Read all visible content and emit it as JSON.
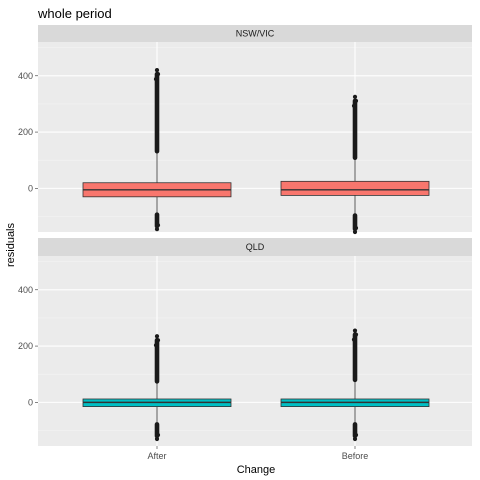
{
  "chart_data": {
    "type": "box",
    "title": "whole period",
    "xlabel": "Change",
    "ylabel": "residuals",
    "categories": [
      "After",
      "Before"
    ],
    "y_ticks": [
      0,
      200,
      400
    ],
    "ylim": [
      -155,
      520
    ],
    "grid": true,
    "legend": "none",
    "facets": [
      {
        "label": "NSW/VIC",
        "color": "#F8766D",
        "boxes": [
          {
            "category": "After",
            "lower_whisker": -145,
            "q1": -30,
            "median": -5,
            "q3": 20,
            "upper_whisker": 420
          },
          {
            "category": "Before",
            "lower_whisker": -155,
            "q1": -25,
            "median": -5,
            "q3": 25,
            "upper_whisker": 325
          }
        ]
      },
      {
        "label": "QLD",
        "color": "#00BFC4",
        "boxes": [
          {
            "category": "After",
            "lower_whisker": -130,
            "q1": -15,
            "median": 0,
            "q3": 12,
            "upper_whisker": 235
          },
          {
            "category": "Before",
            "lower_whisker": -130,
            "q1": -15,
            "median": 0,
            "q3": 12,
            "upper_whisker": 255
          }
        ]
      }
    ]
  }
}
